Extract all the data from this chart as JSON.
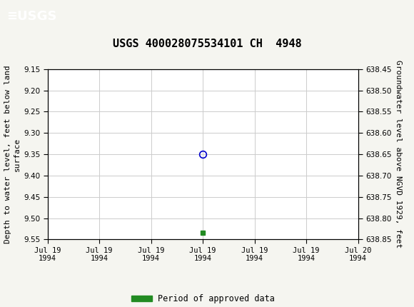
{
  "title": "USGS 400028075534101 CH  4948",
  "header_bg_color": "#1a6b3c",
  "ylabel_left": "Depth to water level, feet below land\nsurface",
  "ylabel_right": "Groundwater level above NGVD 1929, feet",
  "ylim_left": [
    9.15,
    9.55
  ],
  "ylim_right_top": 638.85,
  "ylim_right_bottom": 638.45,
  "yticks_left": [
    9.15,
    9.2,
    9.25,
    9.3,
    9.35,
    9.4,
    9.45,
    9.5,
    9.55
  ],
  "yticks_right": [
    638.85,
    638.8,
    638.75,
    638.7,
    638.65,
    638.6,
    638.55,
    638.5,
    638.45
  ],
  "data_point_x_hours": 12,
  "data_point_y": 9.35,
  "data_point_color": "#0000cc",
  "green_bar_x_hours": 12,
  "green_bar_y": 9.535,
  "green_bar_color": "#228B22",
  "grid_color": "#cccccc",
  "bg_color": "#f5f5f0",
  "plot_bg_color": "#ffffff",
  "xdate_start_hours": 0,
  "xdate_end_hours": 24,
  "xtick_hours": [
    0,
    4,
    8,
    12,
    16,
    20,
    24
  ],
  "xtick_labels": [
    "Jul 19\n1994",
    "Jul 19\n1994",
    "Jul 19\n1994",
    "Jul 19\n1994",
    "Jul 19\n1994",
    "Jul 19\n1994",
    "Jul 20\n1994"
  ],
  "legend_label": "Period of approved data",
  "legend_color": "#228B22",
  "title_fontsize": 11,
  "axis_label_fontsize": 8,
  "tick_fontsize": 7.5
}
